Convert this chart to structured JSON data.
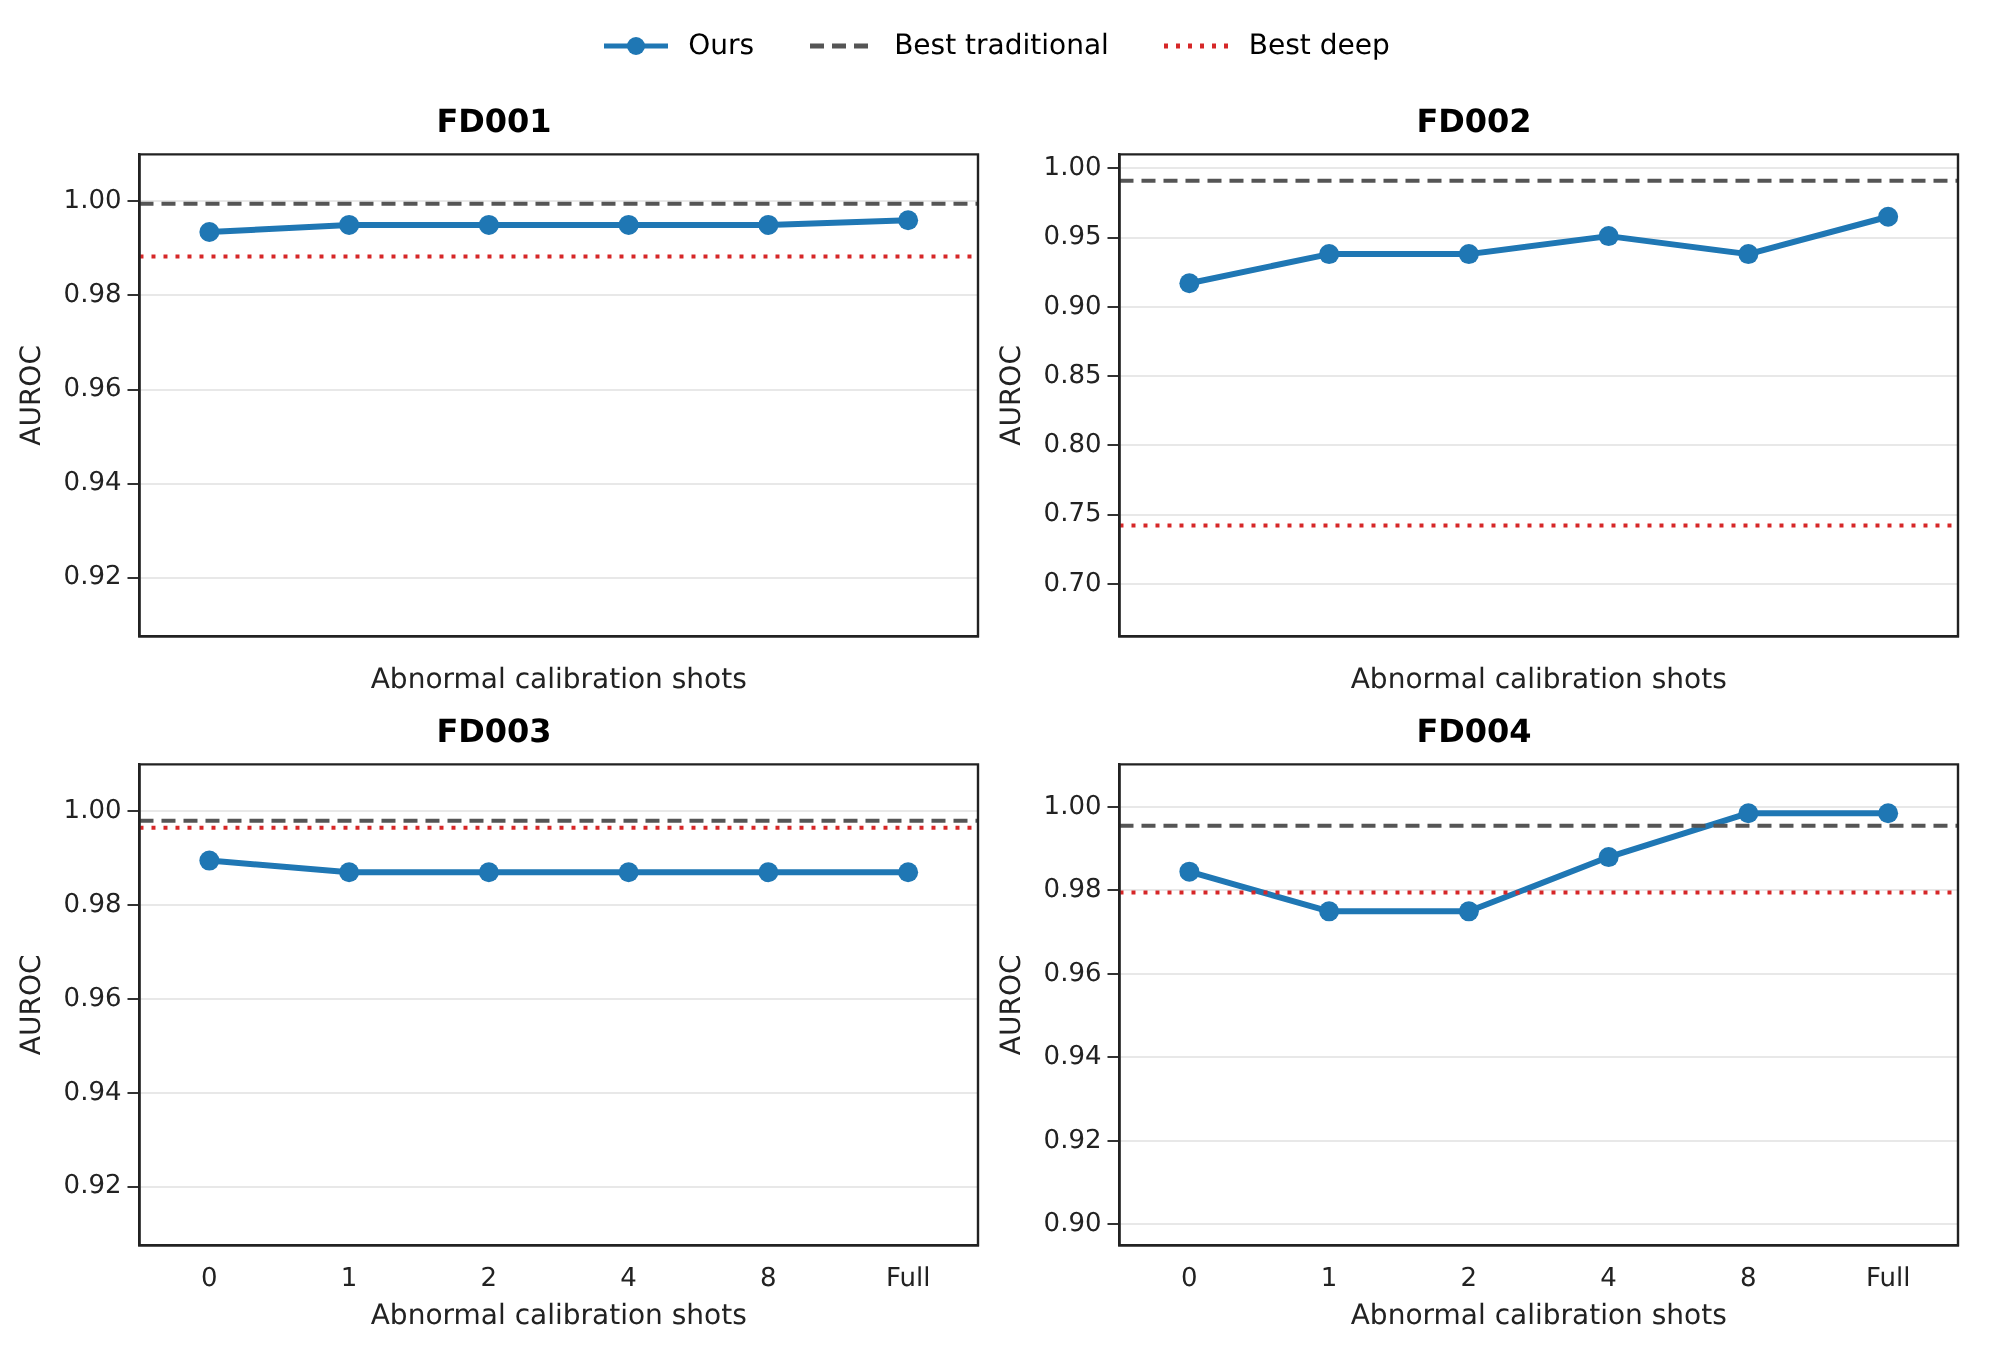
{
  "chart_data": [
    {
      "type": "line",
      "title": "FD001",
      "xlabel": "Abnormal calibration shots",
      "ylabel": "AUROC",
      "categories": [
        null,
        null,
        null,
        null,
        null,
        null
      ],
      "series": [
        {
          "name": "Ours",
          "color": "#1f77b4",
          "values": [
            0.9935,
            0.995,
            0.995,
            0.995,
            0.995,
            0.996
          ]
        }
      ],
      "ref_lines": [
        {
          "axis": "y",
          "value": 0.9995,
          "label": "Best traditional",
          "color": "#555555",
          "line_style": "dashed"
        },
        {
          "axis": "y",
          "value": 0.9883,
          "label": "Best deep",
          "color": "#d62728",
          "line_style": "dotted"
        }
      ],
      "ylim": [
        0.9075,
        1.01
      ],
      "yticks": [
        {
          "value": 0.92,
          "label": "0.92"
        },
        {
          "value": 0.94,
          "label": "0.94"
        },
        {
          "value": 0.96,
          "label": "0.96"
        },
        {
          "value": 0.98,
          "label": "0.98"
        },
        {
          "value": 1.0,
          "label": "1.00"
        }
      ],
      "grid": "y",
      "marker": "circle",
      "line_style": "solid",
      "legend": "top",
      "tick_labels": "y"
    },
    {
      "type": "line",
      "title": "FD002",
      "xlabel": "Abnormal calibration shots",
      "ylabel": "AUROC",
      "categories": [
        null,
        null,
        null,
        null,
        null,
        null
      ],
      "series": [
        {
          "color": "#1f77b4",
          "values": [
            0.917,
            0.938,
            0.938,
            0.951,
            0.938,
            0.965
          ]
        }
      ],
      "ref_lines": [
        {
          "axis": "y",
          "value": 0.991,
          "color": "#555555",
          "line_style": "dashed"
        },
        {
          "axis": "y",
          "value": 0.742,
          "color": "#d62728",
          "line_style": "dotted"
        }
      ],
      "ylim": [
        0.662,
        1.01
      ],
      "yticks": [
        {
          "value": 0.7,
          "label": "0.70"
        },
        {
          "value": 0.75,
          "label": "0.75"
        },
        {
          "value": 0.8,
          "label": "0.80"
        },
        {
          "value": 0.85,
          "label": "0.85"
        },
        {
          "value": 0.9,
          "label": "0.90"
        },
        {
          "value": 0.95,
          "label": "0.95"
        },
        {
          "value": 1.0,
          "label": "1.00"
        }
      ],
      "grid": "y",
      "marker": "circle",
      "line_style": "solid",
      "tick_labels": "y"
    },
    {
      "type": "line",
      "title": "FD003",
      "xlabel": "Abnormal calibration shots",
      "ylabel": "AUROC",
      "categories": [
        "0",
        "1",
        "2",
        "4",
        "8",
        "Full"
      ],
      "series": [
        {
          "color": "#1f77b4",
          "values": [
            0.9895,
            0.987,
            0.987,
            0.987,
            0.987,
            0.987
          ]
        }
      ],
      "ref_lines": [
        {
          "axis": "y",
          "value": 0.998,
          "color": "#555555",
          "line_style": "dashed"
        },
        {
          "axis": "y",
          "value": 0.9965,
          "color": "#d62728",
          "line_style": "dotted"
        }
      ],
      "ylim": [
        0.9075,
        1.01
      ],
      "yticks": [
        {
          "value": 0.92,
          "label": "0.92"
        },
        {
          "value": 0.94,
          "label": "0.94"
        },
        {
          "value": 0.96,
          "label": "0.96"
        },
        {
          "value": 0.98,
          "label": "0.98"
        },
        {
          "value": 1.0,
          "label": "1.00"
        }
      ],
      "grid": "y",
      "marker": "circle",
      "line_style": "solid"
    },
    {
      "type": "line",
      "title": "FD004",
      "xlabel": "Abnormal calibration shots",
      "ylabel": "AUROC",
      "categories": [
        "0",
        "1",
        "2",
        "4",
        "8",
        "Full"
      ],
      "series": [
        {
          "color": "#1f77b4",
          "values": [
            0.9845,
            0.975,
            0.975,
            0.988,
            0.9985,
            0.9985
          ]
        }
      ],
      "ref_lines": [
        {
          "axis": "y",
          "value": 0.9955,
          "color": "#555555",
          "line_style": "dashed"
        },
        {
          "axis": "y",
          "value": 0.9795,
          "color": "#d62728",
          "line_style": "dotted"
        }
      ],
      "ylim": [
        0.895,
        1.0102
      ],
      "yticks": [
        {
          "value": 0.9,
          "label": "0.90"
        },
        {
          "value": 0.92,
          "label": "0.92"
        },
        {
          "value": 0.94,
          "label": "0.94"
        },
        {
          "value": 0.96,
          "label": "0.96"
        },
        {
          "value": 0.98,
          "label": "0.98"
        },
        {
          "value": 1.0,
          "label": "1.00"
        }
      ],
      "grid": "y",
      "marker": "circle",
      "line_style": "solid"
    }
  ]
}
